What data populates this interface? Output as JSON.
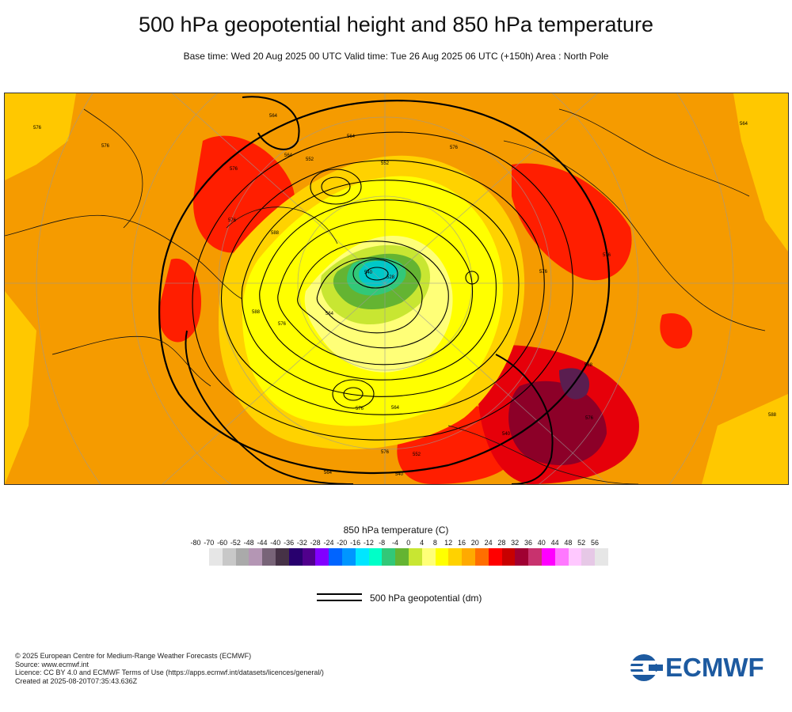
{
  "header": {
    "title": "500 hPa geopotential height and 850 hPa temperature",
    "subtitle": "Base time: Wed 20 Aug 2025 00 UTC Valid time: Tue 26 Aug 2025 06 UTC (+150h) Area : North Pole"
  },
  "map": {
    "projection": "polar stereographic",
    "area": "North Pole",
    "contour_labels": [
      "576",
      "576",
      "576",
      "564",
      "564",
      "564",
      "576",
      "552",
      "552",
      "540",
      "528",
      "576",
      "588",
      "588",
      "576",
      "564",
      "576",
      "564",
      "576",
      "552",
      "540",
      "564",
      "540",
      "576",
      "588",
      "576",
      "564",
      "588",
      "576"
    ]
  },
  "legend": {
    "temperature_title": "850 hPa temperature (C)",
    "ticks": [
      "-80",
      "-70",
      "-60",
      "-52",
      "-48",
      "-44",
      "-40",
      "-36",
      "-32",
      "-28",
      "-24",
      "-20",
      "-16",
      "-12",
      "-8",
      "-4",
      "0",
      "4",
      "8",
      "12",
      "16",
      "20",
      "24",
      "28",
      "32",
      "36",
      "40",
      "44",
      "48",
      "52",
      "56"
    ],
    "colors": [
      "#e6e6e6",
      "#c8c8c8",
      "#aaaaaa",
      "#b496b4",
      "#786478",
      "#463246",
      "#28006e",
      "#50008c",
      "#8200ff",
      "#0064ff",
      "#0096ff",
      "#00e6ff",
      "#00ffc8",
      "#32c878",
      "#64b432",
      "#c8e632",
      "#ffff78",
      "#ffff00",
      "#ffd200",
      "#ffaa00",
      "#ff6e00",
      "#ff0000",
      "#c80000",
      "#a00032",
      "#c8326e",
      "#ff00ff",
      "#ff78ff",
      "#ffc8ff",
      "#e6c8e6",
      "#e6e6e6"
    ],
    "geopotential_label": "500 hPa geopotential (dm)"
  },
  "credits": {
    "line1": "© 2025 European Centre for Medium-Range Weather Forecasts (ECMWF)",
    "line2": "Source: www.ecmwf.int",
    "line3": "Licence: CC BY 4.0 and ECMWF Terms of Use (https://apps.ecmwf.int/datasets/licences/general/)",
    "line4": "Created at 2025-08-20T07:35:43.636Z"
  },
  "logo": {
    "text": "ECMWF",
    "color": "#1d5aa0"
  }
}
